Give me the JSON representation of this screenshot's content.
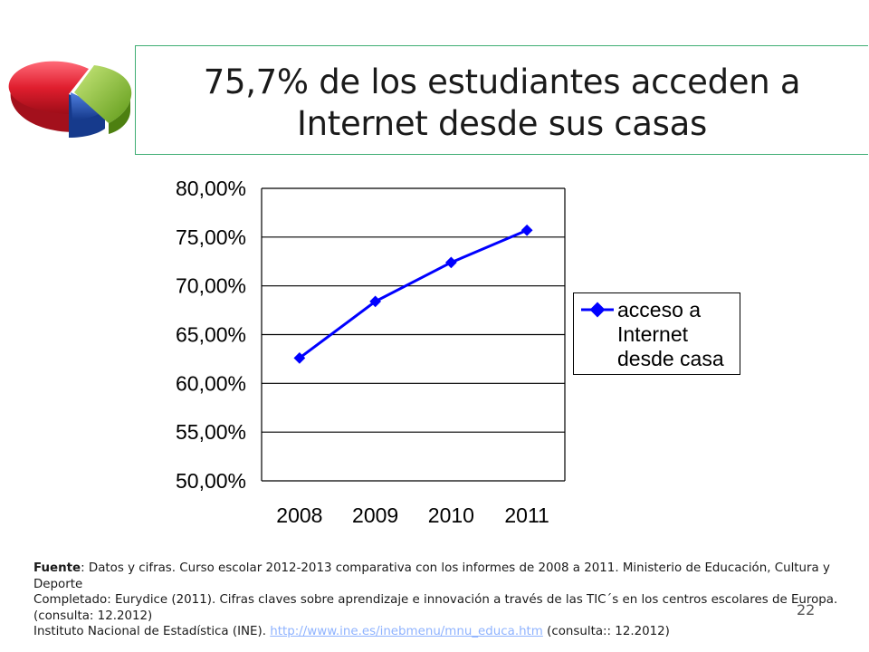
{
  "slide": {
    "title_line1": "75,7% de los estudiantes acceden a",
    "title_line2": "Internet desde sus casas",
    "page_number": "22",
    "logo_icon": "pie-chart-icon",
    "colors": {
      "title_border": "#3fae74",
      "series": "#0000ff",
      "link": "#8fb3ff",
      "logo_red": "#e01e2e",
      "logo_green": "#7fb82b",
      "logo_blue": "#1f4fb4"
    }
  },
  "chart_data": {
    "type": "line",
    "categories": [
      "2008",
      "2009",
      "2010",
      "2011"
    ],
    "y_tick_labels": [
      "80,00%",
      "75,00%",
      "70,00%",
      "65,00%",
      "60,00%",
      "55,00%",
      "50,00%"
    ],
    "ylim": [
      50,
      80
    ],
    "y_ticks": [
      50,
      55,
      60,
      65,
      70,
      75,
      80
    ],
    "grid": true,
    "legend_position": "right",
    "series": [
      {
        "name": "acceso a Internet desde casa",
        "values": [
          62.6,
          68.4,
          72.4,
          75.7
        ]
      }
    ]
  },
  "footer": {
    "source_label": "Fuente",
    "source_text": ": Datos y cifras. Curso escolar 2012-2013 comparativa con los informes de 2008 a 2011. Ministerio de Educación, Cultura y Deporte",
    "completed_text": "Completado: Eurydice (2011). Cifras claves sobre aprendizaje e innovación a través de las TIC´s en los centros escolares de Europa. (consulta: 12.2012)",
    "ine_text": "Instituto Nacional de Estadística (INE). ",
    "ine_link": "http://www.ine.es/inebmenu/mnu_educa.htm",
    "ine_suffix": "  (consulta:: 12.2012)"
  }
}
